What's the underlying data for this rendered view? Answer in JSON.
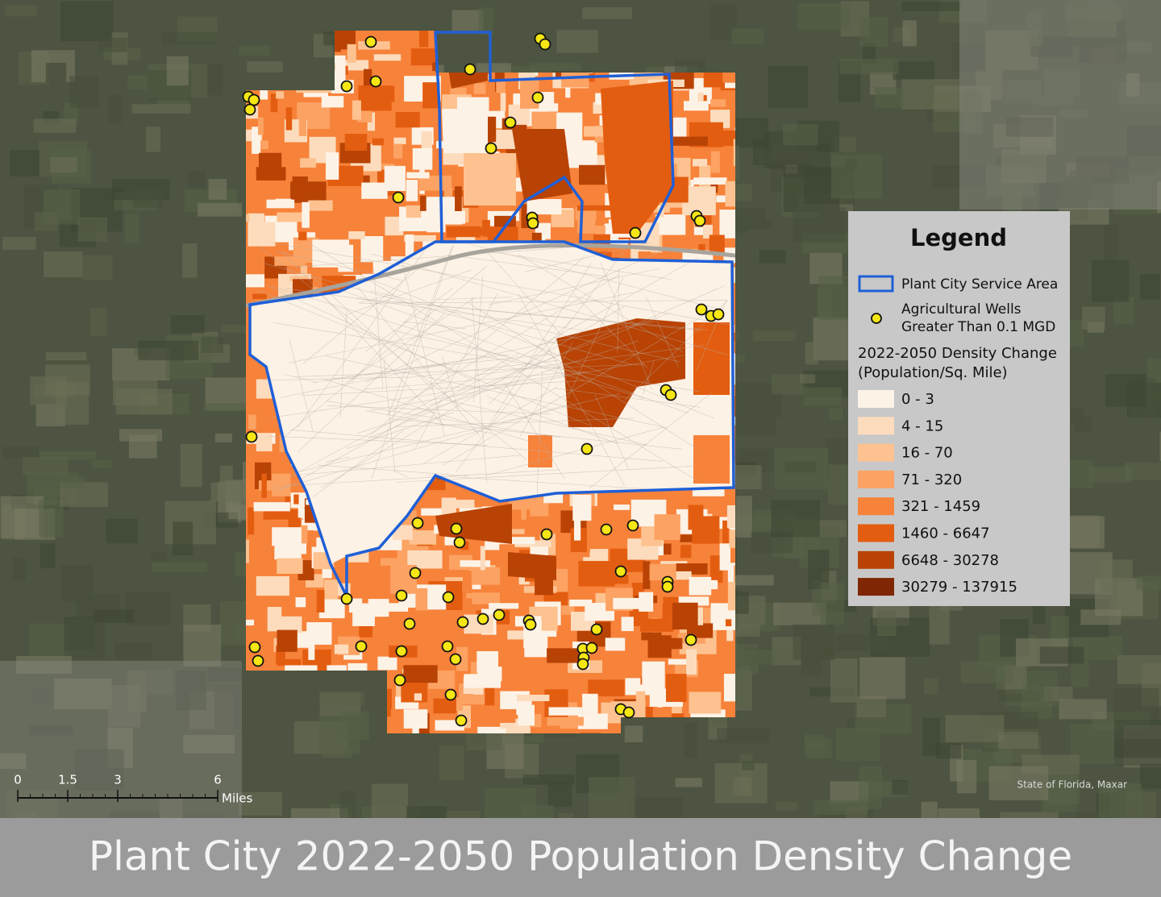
{
  "legend": {
    "title": "Legend",
    "service_area": "Plant City Service Area",
    "wells": [
      "Agricultural Wells",
      "Greater Than 0.1 MGD"
    ],
    "density_title": [
      "2022-2050 Density Change",
      "(Population/Sq. Mile)"
    ],
    "classes": [
      {
        "label": "0 - 3",
        "color": "#fdf2e6"
      },
      {
        "label": "4 - 15",
        "color": "#fddcbd"
      },
      {
        "label": "16 - 70",
        "color": "#fdc28f"
      },
      {
        "label": "71 - 320",
        "color": "#fca262"
      },
      {
        "label": "321 - 1459",
        "color": "#f7823a"
      },
      {
        "label": "1460 - 6647",
        "color": "#e35d10"
      },
      {
        "label": "6648 - 30278",
        "color": "#b84305"
      },
      {
        "label": "30279 - 137915",
        "color": "#7f2704"
      }
    ]
  },
  "scale_bar": {
    "ticks": [
      0,
      1.5,
      3,
      6
    ],
    "unit": "Miles"
  },
  "attribution": "State of Florida, Maxar",
  "caption": "Plant City 2022-2050 Population Density Change"
}
